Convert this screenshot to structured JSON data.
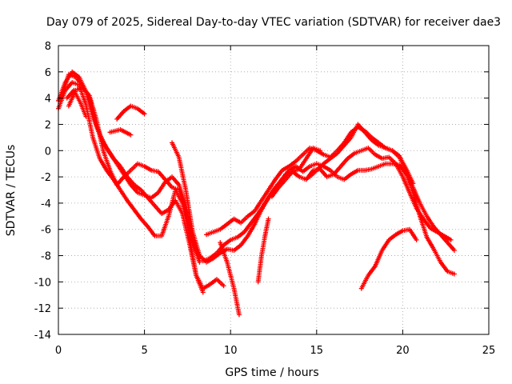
{
  "chart_data": {
    "type": "scatter",
    "title": "Day 079 of 2025, Sidereal Day-to-day VTEC variation (SDTVAR) for receiver dae3",
    "xlabel": "GPS time / hours",
    "ylabel": "SDTVAR / TECUs",
    "xlim": [
      0,
      25
    ],
    "ylim": [
      -14,
      8
    ],
    "xticks": [
      0,
      5,
      10,
      15,
      20,
      25
    ],
    "yticks": [
      -14,
      -12,
      -10,
      -8,
      -6,
      -4,
      -2,
      0,
      2,
      4,
      6,
      8
    ],
    "grid": true,
    "marker": "+",
    "series_color": "#ff0000",
    "series": [
      {
        "x": [
          0.0,
          0.4,
          0.8,
          1.2,
          1.6,
          2.0,
          2.4,
          2.8,
          3.2,
          3.6,
          4.0,
          4.4,
          4.8,
          5.2,
          5.6,
          6.0,
          6.4,
          6.8,
          7.2,
          7.6,
          8.0,
          8.4,
          8.8,
          9.2,
          9.6
        ],
        "y": [
          3.2,
          4.6,
          5.2,
          5.0,
          3.5,
          1.0,
          -0.6,
          -1.5,
          -2.2,
          -3.0,
          -3.8,
          -4.5,
          -5.2,
          -5.8,
          -6.5,
          -6.5,
          -5.0,
          -3.0,
          -4.0,
          -6.5,
          -9.5,
          -10.5,
          -10.2,
          -9.8,
          -10.3
        ]
      },
      {
        "x": [
          0.0,
          0.4,
          0.8,
          1.2,
          1.6,
          2.0,
          2.4,
          2.8,
          3.2,
          3.6,
          4.0,
          4.4,
          4.8,
          5.2,
          5.6,
          6.0,
          6.4,
          6.8,
          7.2,
          7.6,
          8.0,
          8.4
        ],
        "y": [
          3.8,
          5.2,
          6.0,
          5.6,
          4.5,
          2.6,
          1.2,
          0.2,
          -0.6,
          -1.2,
          -2.0,
          -2.6,
          -3.0,
          -3.6,
          -4.2,
          -4.8,
          -4.5,
          -3.8,
          -4.8,
          -7.0,
          -9.5,
          -10.8
        ]
      },
      {
        "x": [
          0.2,
          0.6,
          1.0,
          1.4,
          1.8,
          2.2,
          2.6,
          3.0,
          3.4,
          3.8,
          4.2,
          4.6,
          5.0,
          5.4,
          5.8,
          6.2,
          6.6,
          7.0,
          7.4,
          7.8,
          8.2
        ],
        "y": [
          4.2,
          5.8,
          5.6,
          5.0,
          4.0,
          2.0,
          0.6,
          -0.2,
          -1.0,
          -1.8,
          -2.6,
          -3.2,
          -3.4,
          -3.6,
          -3.2,
          -2.4,
          -2.0,
          -2.6,
          -4.2,
          -6.8,
          -8.2
        ]
      },
      {
        "x": [
          0.6,
          1.0,
          1.4,
          1.8,
          2.2,
          2.6,
          3.0,
          3.4,
          3.8,
          4.2,
          4.6,
          5.0,
          5.4,
          5.8,
          6.2,
          6.6,
          7.0,
          7.4,
          7.8,
          8.2
        ],
        "y": [
          3.4,
          4.6,
          4.8,
          4.2,
          2.4,
          0.0,
          -1.5,
          -2.6,
          -2.0,
          -1.5,
          -1.0,
          -1.2,
          -1.5,
          -1.6,
          -2.2,
          -2.8,
          -3.0,
          -4.5,
          -7.0,
          -8.5
        ]
      },
      {
        "x": [
          0.5,
          0.9,
          1.3,
          1.6
        ],
        "y": [
          4.0,
          4.6,
          3.6,
          2.6
        ]
      },
      {
        "x": [
          3.4,
          3.8,
          4.2,
          4.6,
          5.0
        ],
        "y": [
          2.4,
          3.0,
          3.4,
          3.2,
          2.8
        ]
      },
      {
        "x": [
          3.0,
          3.6,
          4.2
        ],
        "y": [
          1.4,
          1.6,
          1.2
        ]
      },
      {
        "x": [
          6.6,
          7.0,
          7.4,
          7.8,
          8.2,
          8.6,
          9.0,
          9.4,
          9.8,
          10.2,
          10.6,
          11.0,
          11.4,
          11.8,
          12.2,
          12.6,
          13.0,
          13.4,
          13.8,
          14.2,
          14.6,
          15.0,
          15.4,
          15.8,
          16.2,
          16.6,
          17.0,
          17.4,
          17.8,
          18.2,
          18.6,
          19.0,
          19.4,
          19.8,
          20.2,
          20.6,
          21.0,
          21.4,
          21.8,
          22.2,
          22.6,
          23.0
        ],
        "y": [
          0.6,
          -0.5,
          -3.0,
          -6.2,
          -8.0,
          -8.5,
          -8.2,
          -7.8,
          -7.5,
          -7.6,
          -7.2,
          -6.5,
          -5.6,
          -4.5,
          -3.6,
          -2.8,
          -2.2,
          -1.5,
          -1.2,
          -1.6,
          -1.2,
          -1.0,
          -1.2,
          -1.5,
          -2.0,
          -2.2,
          -1.8,
          -1.5,
          -1.5,
          -1.4,
          -1.2,
          -1.0,
          -1.0,
          -1.1,
          -1.8,
          -3.2,
          -5.0,
          -6.6,
          -7.5,
          -8.5,
          -9.2,
          -9.4
        ]
      },
      {
        "x": [
          8.6,
          9.0,
          9.4,
          9.8,
          10.2,
          10.6,
          11.0,
          11.4,
          11.8,
          12.2,
          12.6,
          13.0,
          13.4,
          13.8,
          14.2,
          14.6,
          15.0,
          15.4,
          15.8,
          16.2,
          16.6,
          17.0,
          17.4,
          17.8,
          18.2,
          18.6,
          19.0,
          19.4,
          19.8,
          20.2,
          20.6,
          21.0,
          21.4,
          21.8,
          22.2,
          22.6,
          23.0
        ],
        "y": [
          -6.4,
          -6.2,
          -6.0,
          -5.6,
          -5.2,
          -5.5,
          -5.0,
          -4.6,
          -3.8,
          -3.0,
          -2.2,
          -1.5,
          -1.2,
          -0.8,
          -0.3,
          0.2,
          0.0,
          -0.3,
          -0.5,
          0.0,
          0.6,
          1.4,
          1.8,
          1.5,
          1.0,
          0.6,
          0.2,
          0.0,
          -0.5,
          -1.5,
          -2.8,
          -4.0,
          -5.0,
          -5.8,
          -6.4,
          -7.0,
          -7.6
        ]
      },
      {
        "x": [
          8.4,
          8.8,
          9.2,
          9.6,
          10.0,
          10.4,
          10.8,
          11.2,
          11.6,
          12.0,
          12.4,
          12.8,
          13.2,
          13.6,
          14.0,
          14.4,
          14.8,
          15.2,
          15.6,
          16.0,
          16.4,
          16.8,
          17.2,
          17.6,
          18.0,
          18.4,
          18.8,
          19.2,
          19.6,
          20.0,
          20.4,
          20.8,
          21.2,
          21.6,
          22.0,
          22.4,
          22.8
        ],
        "y": [
          -8.4,
          -8.2,
          -7.8,
          -7.2,
          -6.8,
          -6.6,
          -6.2,
          -5.5,
          -4.8,
          -4.0,
          -3.2,
          -2.5,
          -1.8,
          -1.6,
          -2.0,
          -2.2,
          -1.5,
          -1.4,
          -2.0,
          -1.8,
          -1.2,
          -0.6,
          -0.2,
          0.0,
          0.2,
          -0.3,
          -0.6,
          -0.5,
          -1.0,
          -2.0,
          -3.2,
          -4.4,
          -5.2,
          -5.9,
          -6.2,
          -6.5,
          -6.8
        ]
      },
      {
        "x": [
          9.4,
          9.8,
          10.2,
          10.5
        ],
        "y": [
          -7.0,
          -8.5,
          -10.5,
          -12.5
        ]
      },
      {
        "x": [
          11.6,
          11.8,
          12.0,
          12.2
        ],
        "y": [
          -10.0,
          -8.0,
          -6.5,
          -5.2
        ]
      },
      {
        "x": [
          12.4,
          12.8,
          13.2,
          13.6,
          14.0,
          14.4,
          14.8,
          15.2
        ],
        "y": [
          -3.5,
          -2.8,
          -2.2,
          -1.6,
          -1.4,
          -0.6,
          0.2,
          0.0
        ]
      },
      {
        "x": [
          14.6,
          15.0,
          15.4,
          15.8,
          16.2,
          16.6,
          17.0,
          17.4,
          17.8,
          18.2,
          18.6,
          19.0,
          19.4,
          19.8,
          20.2,
          20.6
        ],
        "y": [
          -2.0,
          -1.5,
          -1.0,
          -0.6,
          -0.2,
          0.4,
          1.0,
          2.0,
          1.4,
          0.8,
          0.4,
          0.2,
          0.0,
          -0.4,
          -1.4,
          -2.5
        ]
      },
      {
        "x": [
          17.6,
          18.0,
          18.4,
          18.8,
          19.2,
          19.6,
          20.0,
          20.4,
          20.8
        ],
        "y": [
          -10.5,
          -9.5,
          -8.8,
          -7.6,
          -6.8,
          -6.4,
          -6.1,
          -6.0,
          -6.8
        ]
      }
    ]
  }
}
